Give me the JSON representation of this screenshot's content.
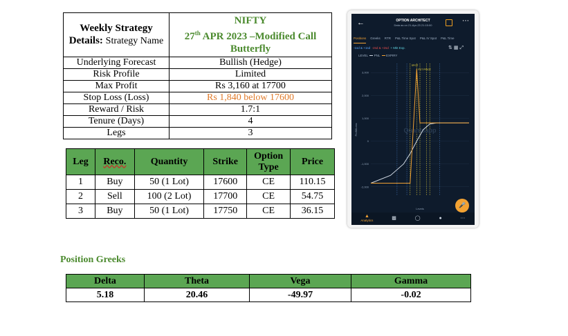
{
  "summary": {
    "header_label_bold": "Weekly Strategy Details:",
    "header_label_rest": "Strategy Name",
    "strategy_line1": "NIFTY",
    "strategy_day": "27",
    "strategy_sup": "th",
    "strategy_line2_rest": " APR 2023 –Modified Call Butterfly",
    "rows": [
      {
        "label": "Underlying Forecast",
        "value": "Bullish (Hedge)"
      },
      {
        "label": "Risk Profile",
        "value": "Limited"
      },
      {
        "label": "Max Profit",
        "value": "Rs 3,160 at 17700"
      },
      {
        "label": "Stop Loss (Loss)",
        "value": "Rs 1,840 below 17600"
      },
      {
        "label": "Reward / Risk",
        "value": "1.7:1"
      },
      {
        "label": "Tenure (Days)",
        "value": "4"
      },
      {
        "label": "Legs",
        "value": "3"
      }
    ],
    "stoploss_color": "#e07a2a"
  },
  "legs_table": {
    "headers": [
      "Leg",
      "Reco.",
      "Quantity",
      "Strike",
      "Option Type",
      "Price"
    ],
    "rows": [
      [
        "1",
        "Buy",
        "50 (1 Lot)",
        "17600",
        "CE",
        "110.15"
      ],
      [
        "2",
        "Sell",
        "100 (2 Lot)",
        "17700",
        "CE",
        "54.75"
      ],
      [
        "3",
        "Buy",
        "50 (1 Lot)",
        "17750",
        "CE",
        "36.15"
      ]
    ],
    "header_color": "#5ba653"
  },
  "greeks": {
    "title": "Position Greeks",
    "headers": [
      "Delta",
      "Theta",
      "Vega",
      "Gamma"
    ],
    "values": [
      "5.18",
      "20.46",
      "-49.97",
      "-0.02"
    ]
  },
  "phone": {
    "app_title": "OPTION ARCHITECT",
    "app_subtitle": "Data as on 21-Apr-23 21:15:00",
    "back_icon": "arrow-left-icon",
    "tabs": [
      "Positions",
      "Greeks",
      "RTR",
      "P&L Time Spot",
      "P&L IV Spot",
      "P&L Time"
    ],
    "filters": [
      "-1sd & +1sd",
      "-2sd & +2sd",
      "+ Mkt Exp."
    ],
    "legend": [
      "LEVEL",
      "PNL",
      "EXPIRY"
    ],
    "chart_labels": {
      "spot": "SPOT",
      "put_price": "PUT PRICE",
      "ylabel": "Profit/Loss",
      "xlabel": "Levels",
      "watermark": "Quantsapp"
    },
    "nav": [
      "Analytics"
    ],
    "accent": "#f2a233",
    "bg": "#0e1b2c"
  },
  "chart_data": {
    "type": "line",
    "title": "",
    "xlabel": "Levels",
    "ylabel": "Profit/Loss",
    "y_ticks": [
      "3,000",
      "2,000",
      "1,000",
      "0",
      "-1,000",
      "-2,000"
    ],
    "ylim": [
      -2400,
      3400
    ],
    "xlim": [
      17000,
      18500
    ],
    "series": [
      {
        "name": "PNL",
        "color": "#cfd8e3",
        "x": [
          17000,
          17300,
          17500,
          17600,
          17700,
          17800,
          17900,
          18000,
          18200,
          18500
        ],
        "y": [
          -1840,
          -1500,
          -1000,
          -550,
          0,
          500,
          750,
          800,
          800,
          800
        ]
      },
      {
        "name": "EXPIRY",
        "color": "#f2a233",
        "x": [
          17000,
          17600,
          17700,
          17750,
          18500
        ],
        "y": [
          -1840,
          -1840,
          3160,
          800,
          800
        ]
      }
    ],
    "vlines_yellow": [
      17600,
      17700,
      17750,
      17850,
      17900
    ],
    "vlines_blue": [
      17400,
      17550,
      18050
    ],
    "legend": "top-left",
    "grid": true
  }
}
